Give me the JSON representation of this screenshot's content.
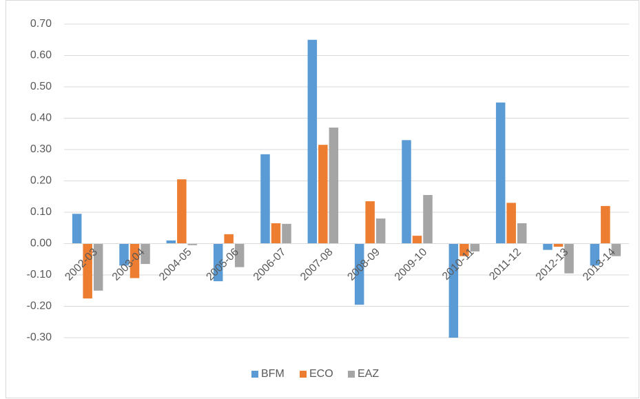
{
  "chart_data": {
    "type": "bar",
    "categories": [
      "2002-03",
      "2003-04",
      "2004-05",
      "2005-06",
      "2006-07",
      "2007-08",
      "2008-09",
      "2009-10",
      "2010-11",
      "2011-12",
      "2012-13",
      "2013-14"
    ],
    "series": [
      {
        "name": "BFM",
        "color": "#5b9bd5",
        "values": [
          0.095,
          -0.07,
          0.01,
          -0.12,
          0.285,
          0.65,
          -0.195,
          0.33,
          -0.3,
          0.45,
          -0.02,
          -0.07
        ]
      },
      {
        "name": "ECO",
        "color": "#ed7d31",
        "values": [
          -0.175,
          -0.11,
          0.205,
          0.03,
          0.065,
          0.315,
          0.135,
          0.025,
          -0.04,
          0.13,
          -0.01,
          0.12
        ]
      },
      {
        "name": "EAZ",
        "color": "#a5a5a5",
        "values": [
          -0.15,
          -0.065,
          -0.005,
          -0.075,
          0.063,
          0.37,
          0.08,
          0.155,
          -0.025,
          0.065,
          -0.095,
          -0.04
        ]
      }
    ],
    "ylim": [
      -0.3,
      0.7
    ],
    "yticks": [
      {
        "value": -0.3,
        "label": "-0.30"
      },
      {
        "value": -0.2,
        "label": "-0.20"
      },
      {
        "value": -0.1,
        "label": "-0.10"
      },
      {
        "value": 0,
        "label": "0.00"
      },
      {
        "value": 0.1,
        "label": "0.10"
      },
      {
        "value": 0.2,
        "label": "0.20"
      },
      {
        "value": 0.3,
        "label": "0.30"
      },
      {
        "value": 0.4,
        "label": "0.40"
      },
      {
        "value": 0.5,
        "label": "0.50"
      },
      {
        "value": 0.6,
        "label": "0.60"
      },
      {
        "value": 0.7,
        "label": "0.70"
      }
    ],
    "grid": true,
    "legend": "bottom"
  }
}
